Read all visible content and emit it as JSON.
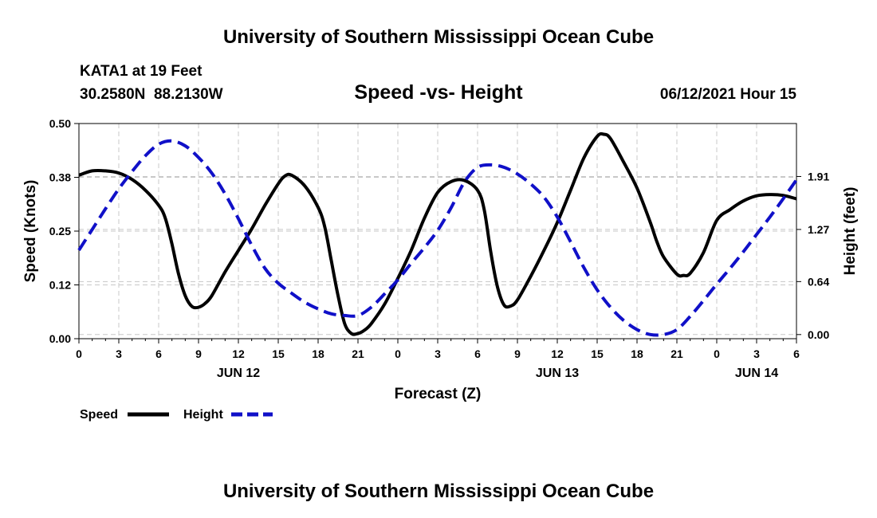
{
  "header": {
    "title": "University of Southern Mississippi Ocean Cube",
    "station": "KATA1 at 19 Feet",
    "coords": "30.2580N  88.2130W",
    "datetime": "06/12/2021 Hour 15"
  },
  "footer": {
    "title": "University of Southern Mississippi Ocean Cube"
  },
  "legend": {
    "speed_label": "Speed",
    "height_label": "Height"
  },
  "colors": {
    "speed": "#000000",
    "height": "#1010c8",
    "grid": "#c8c8c8"
  },
  "chart_data": {
    "type": "line",
    "title": "Speed -vs- Height",
    "xlabel": "Forecast (Z)",
    "ylabel": "Speed (Knots)",
    "y2label": "Height (feet)",
    "xlim": [
      0,
      54
    ],
    "ylim": [
      0,
      0.5
    ],
    "y2lim": [
      -0.05,
      2.55
    ],
    "x_ticks": [
      0,
      3,
      6,
      9,
      12,
      15,
      18,
      21,
      24,
      27,
      30,
      33,
      36,
      39,
      42,
      45,
      48,
      51,
      54
    ],
    "x_tick_labels": [
      "0",
      "3",
      "6",
      "9",
      "12",
      "15",
      "18",
      "21",
      "0",
      "3",
      "6",
      "9",
      "12",
      "15",
      "18",
      "21",
      "0",
      "3",
      "6"
    ],
    "date_labels": [
      {
        "x": 12,
        "label": "JUN 12"
      },
      {
        "x": 36,
        "label": "JUN 13"
      },
      {
        "x": 51,
        "label": "JUN 14"
      }
    ],
    "y_ticks": [
      0,
      0.125,
      0.25,
      0.375,
      0.5
    ],
    "y_tick_labels": [
      "0.00",
      "0.12",
      "0.25",
      "0.38",
      "0.50"
    ],
    "y2_ticks": [
      0,
      0.64,
      1.27,
      1.91
    ],
    "y2_tick_labels": [
      "0.00",
      "0.64",
      "1.27",
      "1.91"
    ],
    "series": [
      {
        "name": "Speed",
        "axis": "left",
        "style": "solid",
        "x": [
          0,
          1,
          2,
          3,
          4,
          5,
          6,
          6.5,
          7,
          7.5,
          8,
          8.5,
          9,
          9.5,
          10,
          11,
          12,
          13,
          14,
          15,
          15.5,
          16,
          17,
          18,
          18.5,
          19,
          19.5,
          20,
          20.5,
          21,
          21.5,
          22,
          23,
          24,
          25,
          26,
          27,
          28,
          29,
          30,
          30.5,
          31,
          31.5,
          32,
          32.5,
          33,
          34,
          35,
          36,
          37,
          38,
          39,
          39.5,
          40,
          41,
          42,
          43,
          43.5,
          44,
          45,
          45.5,
          46,
          47,
          48,
          49,
          50,
          51,
          52,
          53,
          54
        ],
        "values": [
          0.38,
          0.39,
          0.39,
          0.385,
          0.37,
          0.345,
          0.31,
          0.28,
          0.22,
          0.15,
          0.1,
          0.075,
          0.073,
          0.082,
          0.1,
          0.155,
          0.205,
          0.255,
          0.31,
          0.36,
          0.378,
          0.38,
          0.355,
          0.305,
          0.26,
          0.18,
          0.1,
          0.035,
          0.012,
          0.012,
          0.02,
          0.035,
          0.08,
          0.14,
          0.205,
          0.28,
          0.34,
          0.365,
          0.368,
          0.345,
          0.3,
          0.2,
          0.12,
          0.078,
          0.076,
          0.09,
          0.145,
          0.205,
          0.27,
          0.345,
          0.42,
          0.47,
          0.475,
          0.465,
          0.41,
          0.35,
          0.27,
          0.225,
          0.19,
          0.15,
          0.147,
          0.152,
          0.2,
          0.275,
          0.3,
          0.32,
          0.332,
          0.335,
          0.333,
          0.325
        ]
      },
      {
        "name": "Height",
        "axis": "right",
        "style": "dashed",
        "x": [
          0,
          1,
          2,
          3,
          4,
          5,
          6,
          7,
          8,
          9,
          10,
          11,
          12,
          13,
          14,
          15,
          16,
          17,
          18,
          19,
          20,
          21,
          22,
          23,
          24,
          25,
          26,
          27,
          28,
          29,
          30,
          31,
          32,
          33,
          34,
          35,
          36,
          37,
          38,
          39,
          40,
          41,
          42,
          43,
          44,
          45,
          46,
          47,
          48,
          49,
          50,
          51,
          52,
          53,
          54
        ],
        "values": [
          1.02,
          1.27,
          1.52,
          1.76,
          1.97,
          2.16,
          2.3,
          2.34,
          2.28,
          2.14,
          1.95,
          1.7,
          1.4,
          1.08,
          0.8,
          0.62,
          0.5,
          0.39,
          0.31,
          0.25,
          0.23,
          0.23,
          0.33,
          0.49,
          0.66,
          0.86,
          1.05,
          1.26,
          1.53,
          1.84,
          2.02,
          2.05,
          2.02,
          1.94,
          1.82,
          1.66,
          1.42,
          1.12,
          0.81,
          0.54,
          0.33,
          0.17,
          0.06,
          0.0,
          0.0,
          0.06,
          0.22,
          0.41,
          0.61,
          0.8,
          1.0,
          1.21,
          1.42,
          1.64,
          1.87
        ]
      }
    ]
  }
}
